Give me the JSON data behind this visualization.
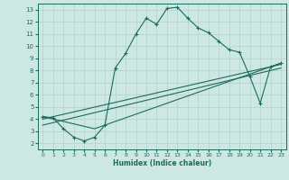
{
  "xlabel": "Humidex (Indice chaleur)",
  "xlim": [
    -0.5,
    23.5
  ],
  "ylim": [
    1.5,
    13.5
  ],
  "xticks": [
    0,
    1,
    2,
    3,
    4,
    5,
    6,
    7,
    8,
    9,
    10,
    11,
    12,
    13,
    14,
    15,
    16,
    17,
    18,
    19,
    20,
    21,
    22,
    23
  ],
  "yticks": [
    2,
    3,
    4,
    5,
    6,
    7,
    8,
    9,
    10,
    11,
    12,
    13
  ],
  "bg_color": "#cde8e2",
  "line_color": "#1a6b5e",
  "grid_color": "#b8d4ce",
  "series1_x": [
    0,
    1,
    2,
    3,
    4,
    5,
    6,
    7,
    8,
    9,
    10,
    11,
    12,
    13,
    14,
    15,
    16,
    17,
    18,
    19,
    20,
    21,
    22,
    23
  ],
  "series1_y": [
    4.2,
    4.1,
    3.2,
    2.5,
    2.2,
    2.5,
    3.5,
    8.2,
    9.4,
    11.0,
    12.3,
    11.8,
    13.1,
    13.2,
    12.3,
    11.5,
    11.1,
    10.4,
    9.7,
    9.5,
    7.5,
    5.3,
    8.3,
    8.6
  ],
  "series2_x": [
    0,
    5,
    23
  ],
  "series2_y": [
    4.2,
    3.2,
    8.6
  ],
  "series3_x": [
    0,
    23
  ],
  "series3_y": [
    4.0,
    8.5
  ],
  "series4_x": [
    0,
    23
  ],
  "series4_y": [
    3.5,
    8.2
  ]
}
